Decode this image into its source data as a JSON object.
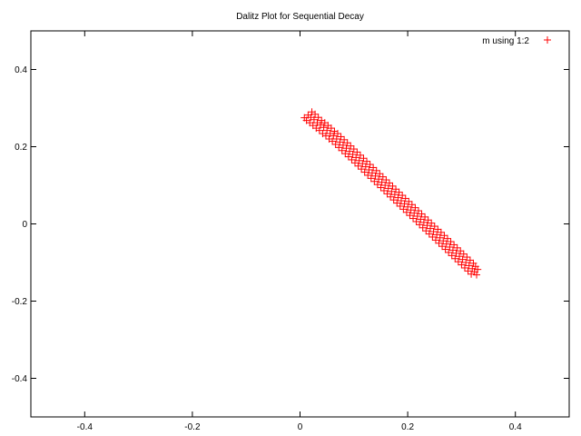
{
  "chart_data": {
    "type": "scatter",
    "title": "Dalitz Plot for Sequential Decay",
    "xlabel": "",
    "ylabel": "",
    "xlim": [
      -0.5,
      0.5
    ],
    "ylim": [
      -0.5,
      0.5
    ],
    "x_ticks": [
      {
        "value": -0.4,
        "label": "-0.4"
      },
      {
        "value": -0.2,
        "label": "-0.2"
      },
      {
        "value": 0,
        "label": "0"
      },
      {
        "value": 0.2,
        "label": "0.2"
      },
      {
        "value": 0.4,
        "label": "0.4"
      }
    ],
    "y_ticks": [
      {
        "value": 0.4,
        "label": "0.4"
      },
      {
        "value": 0.2,
        "label": "0.2"
      },
      {
        "value": 0,
        "label": "0"
      },
      {
        "value": -0.2,
        "label": "-0.2"
      },
      {
        "value": -0.4,
        "label": "-0.4"
      }
    ],
    "grid": false,
    "legend_position": "top-right",
    "series": [
      {
        "name": "m using 1:2",
        "color": "#ff0000",
        "marker": "plus",
        "points": [
          [
            0.008,
            0.275
          ],
          [
            0.012,
            0.268
          ],
          [
            0.015,
            0.282
          ],
          [
            0.018,
            0.262
          ],
          [
            0.02,
            0.276
          ],
          [
            0.022,
            0.29
          ],
          [
            0.024,
            0.255
          ],
          [
            0.026,
            0.27
          ],
          [
            0.028,
            0.284
          ],
          [
            0.03,
            0.248
          ],
          [
            0.032,
            0.262
          ],
          [
            0.034,
            0.276
          ],
          [
            0.036,
            0.242
          ],
          [
            0.038,
            0.256
          ],
          [
            0.04,
            0.268
          ],
          [
            0.042,
            0.234
          ],
          [
            0.044,
            0.25
          ],
          [
            0.046,
            0.262
          ],
          [
            0.048,
            0.228
          ],
          [
            0.05,
            0.242
          ],
          [
            0.052,
            0.255
          ],
          [
            0.054,
            0.22
          ],
          [
            0.056,
            0.234
          ],
          [
            0.058,
            0.248
          ],
          [
            0.06,
            0.214
          ],
          [
            0.062,
            0.228
          ],
          [
            0.064,
            0.24
          ],
          [
            0.066,
            0.206
          ],
          [
            0.068,
            0.22
          ],
          [
            0.07,
            0.234
          ],
          [
            0.072,
            0.198
          ],
          [
            0.074,
            0.212
          ],
          [
            0.076,
            0.226
          ],
          [
            0.078,
            0.19
          ],
          [
            0.08,
            0.204
          ],
          [
            0.082,
            0.218
          ],
          [
            0.084,
            0.182
          ],
          [
            0.086,
            0.196
          ],
          [
            0.088,
            0.21
          ],
          [
            0.09,
            0.174
          ],
          [
            0.092,
            0.188
          ],
          [
            0.094,
            0.202
          ],
          [
            0.096,
            0.166
          ],
          [
            0.098,
            0.18
          ],
          [
            0.1,
            0.194
          ],
          [
            0.102,
            0.158
          ],
          [
            0.104,
            0.172
          ],
          [
            0.106,
            0.186
          ],
          [
            0.108,
            0.15
          ],
          [
            0.11,
            0.164
          ],
          [
            0.112,
            0.178
          ],
          [
            0.114,
            0.142
          ],
          [
            0.116,
            0.156
          ],
          [
            0.118,
            0.17
          ],
          [
            0.12,
            0.134
          ],
          [
            0.122,
            0.148
          ],
          [
            0.124,
            0.162
          ],
          [
            0.126,
            0.126
          ],
          [
            0.128,
            0.14
          ],
          [
            0.13,
            0.154
          ],
          [
            0.132,
            0.118
          ],
          [
            0.134,
            0.132
          ],
          [
            0.136,
            0.146
          ],
          [
            0.138,
            0.11
          ],
          [
            0.14,
            0.124
          ],
          [
            0.142,
            0.138
          ],
          [
            0.144,
            0.102
          ],
          [
            0.146,
            0.116
          ],
          [
            0.148,
            0.13
          ],
          [
            0.15,
            0.094
          ],
          [
            0.152,
            0.108
          ],
          [
            0.154,
            0.122
          ],
          [
            0.156,
            0.086
          ],
          [
            0.158,
            0.1
          ],
          [
            0.16,
            0.114
          ],
          [
            0.162,
            0.078
          ],
          [
            0.164,
            0.092
          ],
          [
            0.166,
            0.106
          ],
          [
            0.168,
            0.07
          ],
          [
            0.17,
            0.084
          ],
          [
            0.172,
            0.098
          ],
          [
            0.174,
            0.062
          ],
          [
            0.176,
            0.076
          ],
          [
            0.178,
            0.09
          ],
          [
            0.18,
            0.054
          ],
          [
            0.182,
            0.068
          ],
          [
            0.184,
            0.082
          ],
          [
            0.186,
            0.046
          ],
          [
            0.188,
            0.06
          ],
          [
            0.19,
            0.074
          ],
          [
            0.192,
            0.038
          ],
          [
            0.194,
            0.052
          ],
          [
            0.196,
            0.066
          ],
          [
            0.198,
            0.03
          ],
          [
            0.2,
            0.044
          ],
          [
            0.202,
            0.058
          ],
          [
            0.204,
            0.022
          ],
          [
            0.206,
            0.036
          ],
          [
            0.208,
            0.05
          ],
          [
            0.21,
            0.014
          ],
          [
            0.212,
            0.028
          ],
          [
            0.214,
            0.042
          ],
          [
            0.216,
            0.006
          ],
          [
            0.218,
            0.02
          ],
          [
            0.22,
            0.034
          ],
          [
            0.222,
            -0.002
          ],
          [
            0.224,
            0.012
          ],
          [
            0.226,
            0.026
          ],
          [
            0.228,
            -0.01
          ],
          [
            0.23,
            0.004
          ],
          [
            0.232,
            0.018
          ],
          [
            0.234,
            -0.018
          ],
          [
            0.236,
            -0.004
          ],
          [
            0.238,
            0.01
          ],
          [
            0.24,
            -0.026
          ],
          [
            0.242,
            -0.012
          ],
          [
            0.244,
            0.002
          ],
          [
            0.246,
            -0.034
          ],
          [
            0.248,
            -0.02
          ],
          [
            0.25,
            -0.006
          ],
          [
            0.252,
            -0.042
          ],
          [
            0.254,
            -0.028
          ],
          [
            0.256,
            -0.014
          ],
          [
            0.258,
            -0.05
          ],
          [
            0.26,
            -0.036
          ],
          [
            0.262,
            -0.022
          ],
          [
            0.264,
            -0.058
          ],
          [
            0.266,
            -0.044
          ],
          [
            0.268,
            -0.03
          ],
          [
            0.27,
            -0.066
          ],
          [
            0.272,
            -0.052
          ],
          [
            0.274,
            -0.038
          ],
          [
            0.276,
            -0.074
          ],
          [
            0.278,
            -0.06
          ],
          [
            0.28,
            -0.046
          ],
          [
            0.282,
            -0.082
          ],
          [
            0.284,
            -0.068
          ],
          [
            0.286,
            -0.054
          ],
          [
            0.288,
            -0.09
          ],
          [
            0.29,
            -0.076
          ],
          [
            0.292,
            -0.062
          ],
          [
            0.294,
            -0.098
          ],
          [
            0.296,
            -0.084
          ],
          [
            0.298,
            -0.07
          ],
          [
            0.3,
            -0.106
          ],
          [
            0.302,
            -0.092
          ],
          [
            0.304,
            -0.078
          ],
          [
            0.306,
            -0.114
          ],
          [
            0.308,
            -0.1
          ],
          [
            0.31,
            -0.086
          ],
          [
            0.312,
            -0.122
          ],
          [
            0.314,
            -0.108
          ],
          [
            0.316,
            -0.094
          ],
          [
            0.318,
            -0.13
          ],
          [
            0.32,
            -0.116
          ],
          [
            0.322,
            -0.102
          ],
          [
            0.324,
            -0.124
          ],
          [
            0.326,
            -0.11
          ],
          [
            0.328,
            -0.132
          ],
          [
            0.33,
            -0.118
          ]
        ]
      }
    ]
  }
}
